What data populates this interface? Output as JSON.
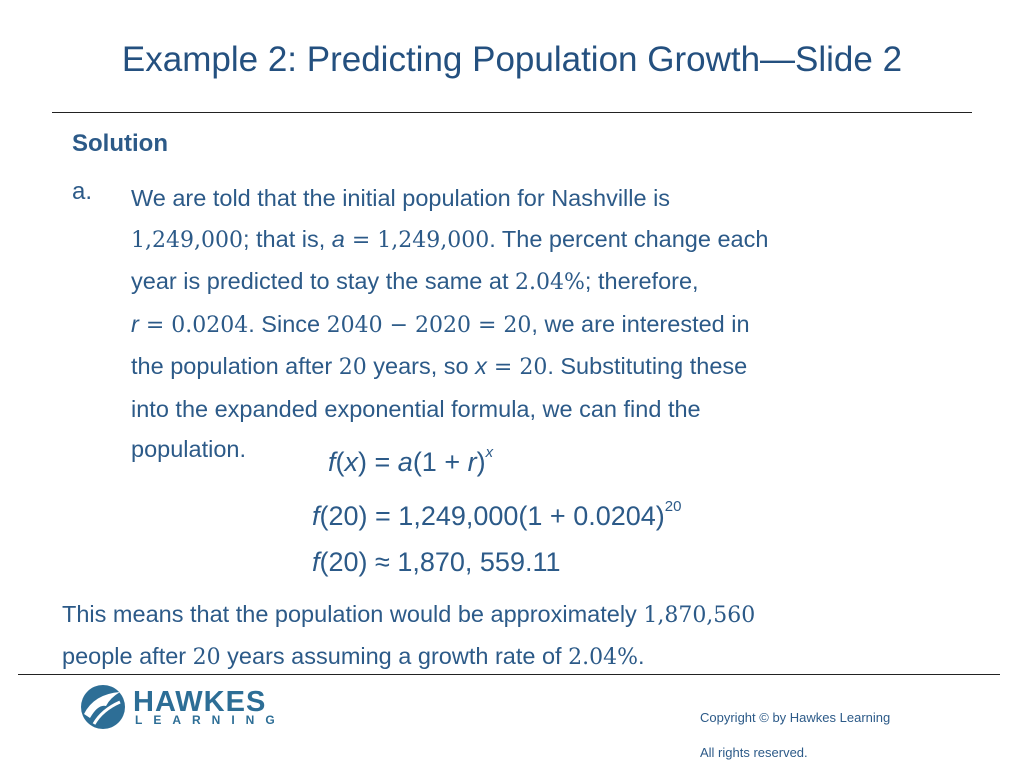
{
  "slide": {
    "title": "Example 2: Predicting Population Growth—Slide 2",
    "heading": "Solution",
    "item_marker": "a.",
    "paragraph": [
      [
        "We are told that the initial population for Nashville is"
      ],
      [
        "1,249,000",
        "; that is, ",
        "a",
        " = 1,249,000",
        ". The percent change each"
      ],
      [
        "year is predicted to stay the same at ",
        "2.04%",
        "; therefore,"
      ],
      [
        "r",
        " = 0.0204",
        ". Since ",
        "2040 − 2020 = 20",
        ", we are interested in"
      ],
      [
        "the population after ",
        "20",
        " years, so ",
        "x",
        " = 20",
        ". Substituting these"
      ],
      [
        "into the expanded exponential formula, we can find the"
      ],
      [
        "population."
      ]
    ],
    "equations": [
      [
        "f",
        "(",
        "x",
        ") = ",
        "a",
        "(1 + ",
        "r",
        ")",
        "x"
      ],
      [
        "f",
        "(20) = 1,249,000(1 + 0.0204)",
        "20"
      ],
      [
        "f",
        "(20) ≈ 1,870, 559.11"
      ]
    ],
    "conclusion": [
      [
        "This means that the population would be approximately ",
        "1,870,560"
      ],
      [
        "people after ",
        "20",
        " years assuming a growth rate of ",
        "2.04%",
        "."
      ]
    ],
    "footer": {
      "logo_name": "HAWKES",
      "logo_sub": "LEARNING",
      "copyright": "Copyright © by Hawkes Learning",
      "rights": "All rights reserved."
    }
  }
}
